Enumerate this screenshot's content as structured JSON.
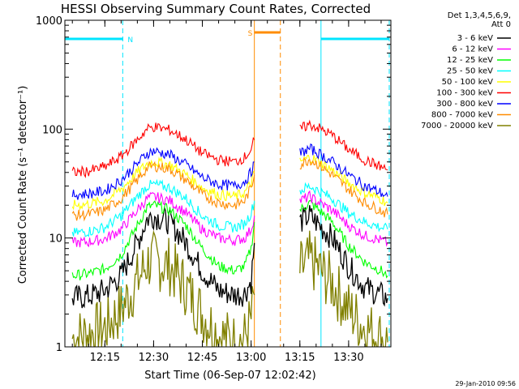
{
  "chart_data": {
    "type": "line",
    "title": "HESSI Observing Summary Count Rates, Corrected",
    "xlabel": "Start Time (06-Sep-07 12:02:42)",
    "ylabel": "Corrected Count Rate (s⁻¹ detector⁻¹)",
    "x_unit": "minutes",
    "xlim": [
      "12:02:42",
      "13:43:00"
    ],
    "ylim": [
      1,
      1000
    ],
    "y_scale": "log",
    "x_ticks": [
      "12:15",
      "12:30",
      "12:45",
      "13:00",
      "13:15",
      "13:30"
    ],
    "y_ticks": [
      "1",
      "10",
      "100",
      "1000"
    ],
    "legend_header": [
      "Det 1,3,4,5,6,9,",
      "Att 0"
    ],
    "legend_position": "right",
    "footer": "29-Jan-2010 09:56",
    "markers": [
      {
        "label": "N",
        "color": "#00e5ff",
        "start": "12:02:42",
        "end": "12:20:30"
      },
      {
        "label": "S",
        "color": "#ff8c00",
        "start": "13:01:00",
        "end": "13:09:00"
      },
      {
        "label": "",
        "color": "#00e5ff",
        "start": "13:21:30",
        "end": "13:42:30"
      }
    ],
    "gap": {
      "start": "13:01:00",
      "end": "13:11:30"
    },
    "x": [
      "12:05",
      "12:10",
      "12:15",
      "12:20",
      "12:25",
      "12:28",
      "12:30",
      "12:35",
      "12:40",
      "12:45",
      "12:50",
      "12:55",
      "12:58",
      "13:00",
      "13:01",
      "13:12",
      "13:15",
      "13:18",
      "13:20",
      "13:25",
      "13:30",
      "13:35",
      "13:40",
      "13:42"
    ],
    "series": [
      {
        "name": "3 - 6 keV",
        "color": "#000000",
        "values": [
          2.8,
          2.9,
          3.3,
          4.5,
          9,
          15,
          16,
          14,
          9,
          5,
          3.3,
          3,
          3.1,
          4,
          9,
          null,
          14,
          16,
          14,
          10,
          5.5,
          3.5,
          3,
          2.8
        ]
      },
      {
        "name": "6 - 12 keV",
        "color": "#ff00ff",
        "values": [
          9,
          9.2,
          9.8,
          12,
          18,
          23,
          24,
          22,
          17,
          12,
          10,
          9.5,
          10,
          12,
          16,
          null,
          22,
          24,
          22,
          18,
          13,
          10.5,
          9.5,
          9
        ]
      },
      {
        "name": "12 - 25 keV",
        "color": "#00ff00",
        "values": [
          4.5,
          4.7,
          5.2,
          7,
          13,
          19,
          20,
          18,
          13,
          8,
          5.5,
          5,
          5.5,
          8,
          14,
          null,
          18,
          21,
          19,
          14,
          8.5,
          6,
          5,
          4.5
        ]
      },
      {
        "name": "25 - 50 keV",
        "color": "#00ffff",
        "values": [
          11,
          11.5,
          12.5,
          16,
          24,
          30,
          31,
          29,
          23,
          16,
          13,
          12.5,
          13.5,
          17,
          22,
          null,
          27,
          30,
          28,
          23,
          17,
          14,
          12.5,
          12
        ]
      },
      {
        "name": "50 - 100 keV",
        "color": "#ffff00",
        "values": [
          20,
          20.5,
          22,
          28,
          40,
          48,
          50,
          47,
          38,
          29,
          25,
          24,
          26,
          32,
          40,
          null,
          50,
          55,
          52,
          42,
          32,
          26,
          23,
          21
        ]
      },
      {
        "name": "100 - 300 keV",
        "color": "#ff0000",
        "values": [
          40,
          41,
          45,
          56,
          80,
          100,
          105,
          98,
          80,
          60,
          52,
          50,
          55,
          65,
          80,
          null,
          100,
          110,
          105,
          88,
          65,
          52,
          45,
          42
        ]
      },
      {
        "name": "300 - 800 keV",
        "color": "#0000ff",
        "values": [
          25,
          25.5,
          27,
          34,
          48,
          60,
          63,
          58,
          47,
          36,
          31,
          30,
          33,
          40,
          50,
          null,
          60,
          66,
          62,
          50,
          38,
          30,
          26,
          24
        ]
      },
      {
        "name": "800 - 7000 keV",
        "color": "#ff8c00",
        "values": [
          16,
          16.5,
          18,
          23,
          34,
          44,
          46,
          43,
          34,
          25,
          21,
          20,
          22,
          29,
          38,
          null,
          47,
          53,
          49,
          38,
          28,
          21,
          18,
          16.5
        ]
      },
      {
        "name": "7000 - 20000 keV",
        "color": "#808000",
        "values": [
          1.2,
          1.3,
          1.5,
          2.2,
          4,
          6,
          6.2,
          5.5,
          3.5,
          2,
          1.3,
          1.1,
          1.2,
          1.8,
          3,
          null,
          5,
          6.2,
          5.5,
          3.8,
          2.2,
          1.5,
          1.2,
          1.1
        ]
      }
    ]
  }
}
